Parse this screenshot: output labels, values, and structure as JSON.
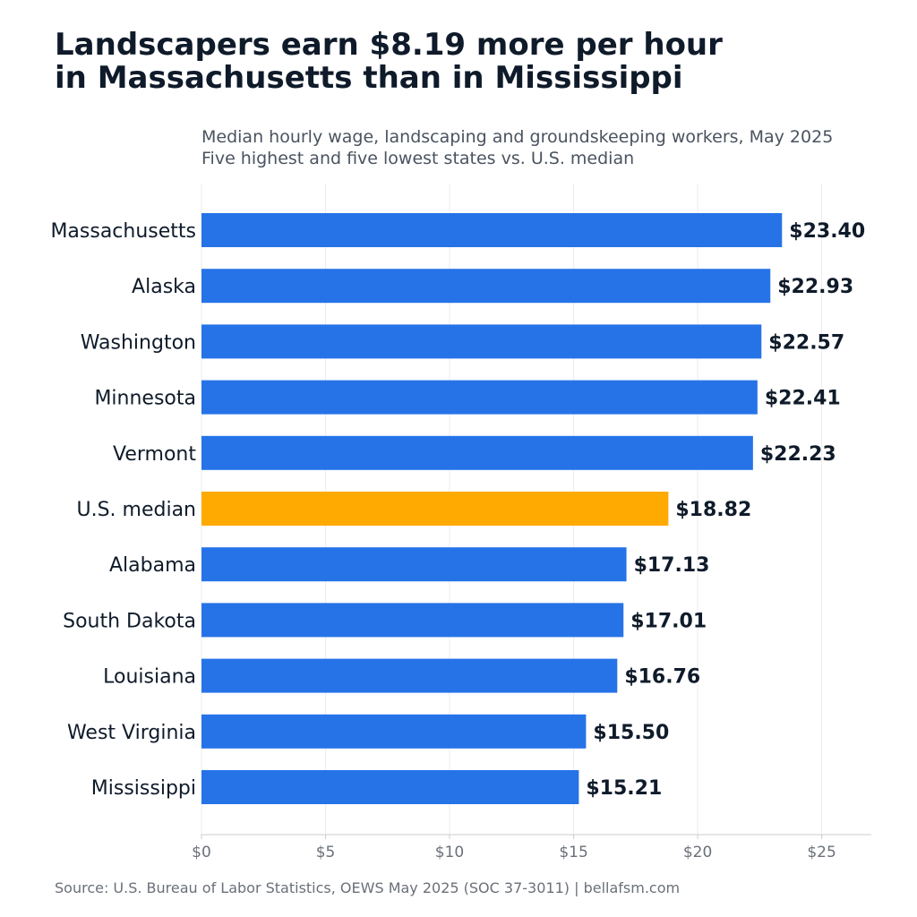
{
  "chart_data": {
    "type": "bar",
    "orientation": "horizontal",
    "title_lines": [
      "Landscapers earn $8.19 more per hour",
      "in Massachusetts than in Mississippi"
    ],
    "subtitle_lines": [
      "Median hourly wage, landscaping and groundskeeping workers, May 2025",
      "Five highest and five lowest states vs. U.S. median"
    ],
    "categories": [
      "Massachusetts",
      "Alaska",
      "Washington",
      "Minnesota",
      "Vermont",
      "U.S. median",
      "Alabama",
      "South Dakota",
      "Louisiana",
      "West Virginia",
      "Mississippi"
    ],
    "values": [
      23.4,
      22.93,
      22.57,
      22.41,
      22.23,
      18.82,
      17.13,
      17.01,
      16.76,
      15.5,
      15.21
    ],
    "value_labels": [
      "$23.40",
      "$22.93",
      "$22.57",
      "$22.41",
      "$22.23",
      "$18.82",
      "$17.13",
      "$17.01",
      "$16.76",
      "$15.50",
      "$15.21"
    ],
    "highlight_category": "U.S. median",
    "colors": {
      "bar": "#2673e8",
      "highlight": "#ffaa00",
      "grid": "#ececec",
      "axis": "#cccccc"
    },
    "x_ticks": [
      0,
      5,
      10,
      15,
      20,
      25
    ],
    "x_tick_labels": [
      "$0",
      "$5",
      "$10",
      "$15",
      "$20",
      "$25"
    ],
    "xlim": [
      0,
      27
    ],
    "grid": true,
    "xlabel": "",
    "ylabel": ""
  },
  "source": "Source: U.S. Bureau of Labor Statistics, OEWS May 2025 (SOC 37-3011)  |  bellafsm.com"
}
